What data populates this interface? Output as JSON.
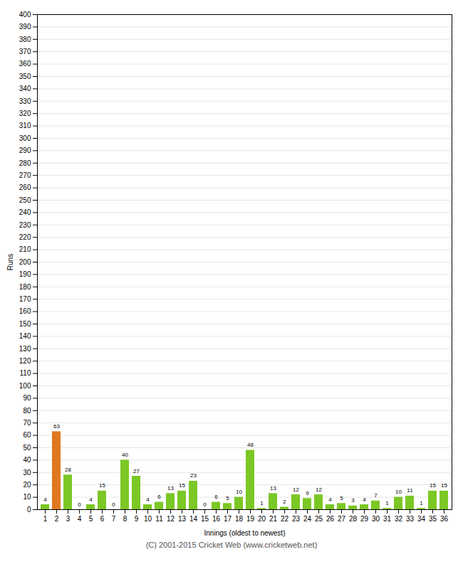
{
  "chart_data": {
    "type": "bar",
    "categories": [
      "1",
      "2",
      "3",
      "4",
      "5",
      "6",
      "7",
      "8",
      "9",
      "10",
      "11",
      "12",
      "13",
      "14",
      "15",
      "16",
      "17",
      "18",
      "19",
      "20",
      "21",
      "22",
      "23",
      "24",
      "25",
      "26",
      "27",
      "28",
      "29",
      "30",
      "31",
      "32",
      "33",
      "34",
      "35",
      "36"
    ],
    "values": [
      4,
      63,
      28,
      0,
      4,
      15,
      0,
      40,
      27,
      4,
      6,
      13,
      15,
      23,
      0,
      6,
      5,
      10,
      48,
      1,
      13,
      2,
      12,
      9,
      12,
      4,
      5,
      3,
      4,
      7,
      1,
      10,
      11,
      1,
      15,
      15
    ],
    "colors": [
      "#7bc725",
      "#e07820",
      "#7bc725",
      "#7bc725",
      "#7bc725",
      "#7bc725",
      "#7bc725",
      "#7bc725",
      "#7bc725",
      "#7bc725",
      "#7bc725",
      "#7bc725",
      "#7bc725",
      "#7bc725",
      "#7bc725",
      "#7bc725",
      "#7bc725",
      "#7bc725",
      "#7bc725",
      "#7bc725",
      "#7bc725",
      "#7bc725",
      "#7bc725",
      "#7bc725",
      "#7bc725",
      "#7bc725",
      "#7bc725",
      "#7bc725",
      "#7bc725",
      "#7bc725",
      "#7bc725",
      "#7bc725",
      "#7bc725",
      "#7bc725",
      "#7bc725",
      "#7bc725"
    ],
    "xlabel": "Innings (oldest to newest)",
    "ylabel": "Runs",
    "caption": "(C) 2001-2015 Cricket Web (www.cricketweb.net)",
    "ylim": [
      0,
      400
    ],
    "yticks": [
      0,
      10,
      20,
      30,
      40,
      50,
      60,
      70,
      80,
      90,
      100,
      110,
      120,
      130,
      140,
      150,
      160,
      170,
      180,
      190,
      200,
      210,
      220,
      230,
      240,
      250,
      260,
      270,
      280,
      290,
      300,
      310,
      320,
      330,
      340,
      350,
      360,
      370,
      380,
      390,
      400
    ],
    "grid": true,
    "data_labels": true
  }
}
